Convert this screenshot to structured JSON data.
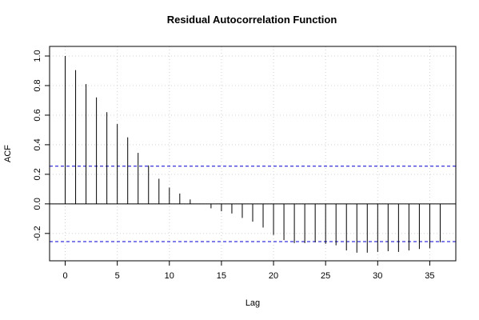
{
  "chart_data": {
    "type": "bar",
    "title": "Residual Autocorrelation Function",
    "xlabel": "Lag",
    "ylabel": "ACF",
    "xlim": [
      -1.5,
      37.5
    ],
    "ylim": [
      -0.385,
      1.065
    ],
    "x_ticks": [
      0,
      5,
      10,
      15,
      20,
      25,
      30,
      35
    ],
    "y_ticks": [
      -0.2,
      0.0,
      0.2,
      0.4,
      0.6,
      0.8,
      1.0
    ],
    "x_tick_labels": [
      "0",
      "5",
      "10",
      "15",
      "20",
      "25",
      "30",
      "35"
    ],
    "y_tick_labels": [
      "-0.2",
      "0.0",
      "0.2",
      "0.4",
      "0.6",
      "0.8",
      "1.0"
    ],
    "grid": true,
    "confidence_bounds": [
      0.255,
      -0.255
    ],
    "lags": [
      0,
      1,
      2,
      3,
      4,
      5,
      6,
      7,
      8,
      9,
      10,
      11,
      12,
      13,
      14,
      15,
      16,
      17,
      18,
      19,
      20,
      21,
      22,
      23,
      24,
      25,
      26,
      27,
      28,
      29,
      30,
      31,
      32,
      33,
      34,
      35,
      36
    ],
    "values": [
      1.0,
      0.905,
      0.81,
      0.72,
      0.62,
      0.54,
      0.45,
      0.345,
      0.26,
      0.17,
      0.11,
      0.07,
      0.03,
      0.0,
      -0.03,
      -0.05,
      -0.065,
      -0.095,
      -0.12,
      -0.16,
      -0.21,
      -0.245,
      -0.265,
      -0.265,
      -0.26,
      -0.27,
      -0.28,
      -0.315,
      -0.33,
      -0.33,
      -0.325,
      -0.32,
      -0.325,
      -0.315,
      -0.305,
      -0.3,
      -0.26
    ],
    "colors": {
      "bars": "#000000",
      "bounds": "#0000cc",
      "grid": "#d3d3d3",
      "zero_line": "#000000"
    }
  }
}
